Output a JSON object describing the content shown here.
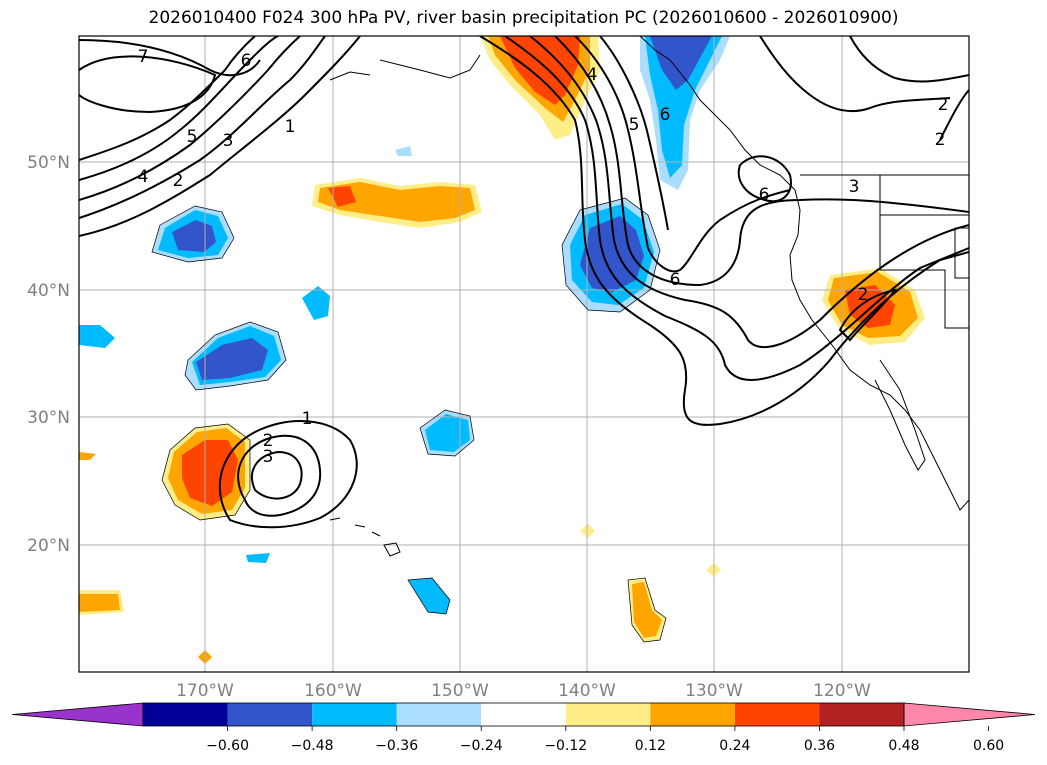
{
  "title": "2026010400 F024 300 hPa PV, river basin precipitation PC (2026010600 - 2026010900)",
  "lat_labels": [
    "50°N",
    "40°N",
    "30°N",
    "20°N"
  ],
  "lon_labels": [
    "170°W",
    "160°W",
    "150°W",
    "140°W",
    "130°W",
    "120°W"
  ],
  "pv_labels": [
    "7",
    "6",
    "5",
    "4",
    "3",
    "2",
    "1",
    "6",
    "5",
    "4",
    "2",
    "2",
    "3",
    "6",
    "6",
    "2",
    "1",
    "2",
    "3"
  ],
  "colorbar": {
    "ticks": [
      "−0.60",
      "−0.48",
      "−0.36",
      "−0.24",
      "−0.12",
      "0.12",
      "0.24",
      "0.36",
      "0.48",
      "0.60"
    ],
    "colors": [
      "#9933cc",
      "#000099",
      "#3355cc",
      "#00bbff",
      "#aaddff",
      "#ffffff",
      "#ffee88",
      "#ffa500",
      "#ff4400",
      "#b22222",
      "#ff88aa"
    ]
  },
  "colors": {
    "neg_dark": "#3355cc",
    "neg_mid": "#00bbff",
    "neg_light": "#aaddff",
    "pos_light": "#ffee88",
    "pos_mid": "#ffa500",
    "pos_strong": "#ff4400"
  }
}
